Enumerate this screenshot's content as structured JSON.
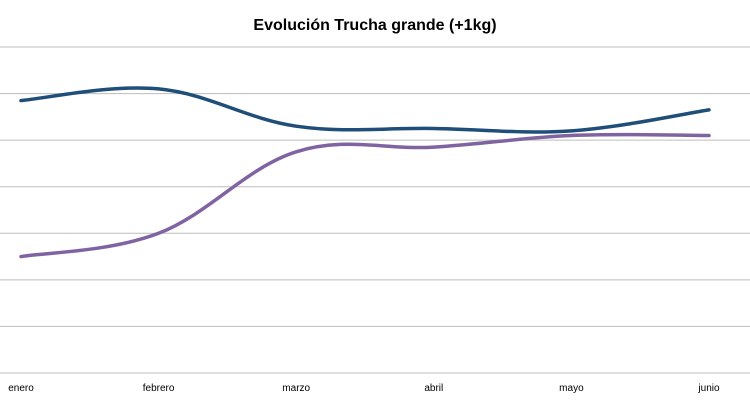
{
  "chart_data": {
    "type": "line",
    "title": "Evolución Trucha grande (+1kg)",
    "xlabel": "",
    "ylabel": "",
    "categories": [
      "enero",
      "febrero",
      "marzo",
      "abril",
      "mayo",
      "junio"
    ],
    "ylim": [
      0,
      7
    ],
    "grid": true,
    "legend": "none",
    "smooth": true,
    "series": [
      {
        "color": "#1f4e79",
        "values": [
          5.85,
          6.1,
          5.3,
          5.25,
          5.2,
          5.65
        ]
      },
      {
        "color": "#8064a2",
        "values": [
          2.5,
          3.0,
          4.75,
          4.85,
          5.1,
          5.1
        ]
      }
    ]
  }
}
